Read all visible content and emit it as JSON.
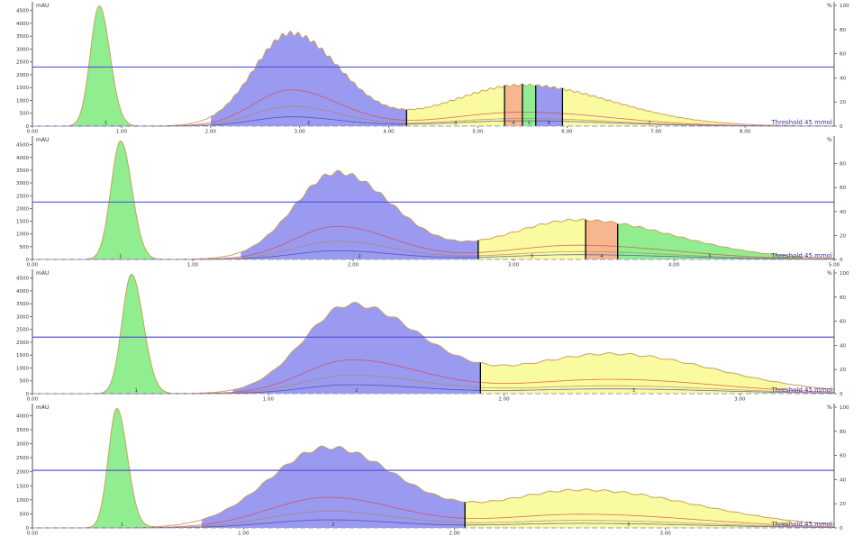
{
  "colors": {
    "axis": "#555555",
    "tick_text": "#333333",
    "threshold_line": "#5555dd",
    "threshold_text": "#3333aa",
    "baseline": "#9999cc",
    "green": "#90ee90",
    "blue": "#9a9af0",
    "yellow": "#fafaa0",
    "orange": "#f6b690",
    "outline": "#c8a060",
    "red_trace": "#dd4444",
    "blue_trace": "#4444aa",
    "brown_trace": "#aa8855",
    "fraction_line": "#000000"
  },
  "chart_data": [
    {
      "type": "area",
      "y_left_label": "mAU",
      "y_right_label": "%",
      "yticks_left": [
        "4500",
        "4000",
        "3500",
        "3000",
        "2500",
        "2000",
        "1500",
        "1000",
        "500",
        "0"
      ],
      "yticks_right": [
        "100",
        "80",
        "60",
        "40",
        "20",
        "0"
      ],
      "ylim_left": [
        0,
        4700
      ],
      "ylim_right": [
        0,
        100
      ],
      "xlim": [
        0,
        9
      ],
      "xticks": [
        "0.00",
        "1.00",
        "2.00",
        "3.00",
        "4.00",
        "5.00",
        "6.00",
        "7.00",
        "8.00"
      ],
      "threshold_value": 2300,
      "threshold_label": "Threshold 45 mmol",
      "peaks": [
        {
          "center": 0.75,
          "height": 4680,
          "width_left": 0.1,
          "width_right": 0.12,
          "red": 0,
          "blue": 0
        },
        {
          "center": 2.9,
          "height": 3600,
          "width_left": 0.42,
          "width_right": 0.55,
          "red": 0.39,
          "blue": 0.1
        },
        {
          "center": 5.5,
          "height": 1600,
          "width_left": 0.8,
          "width_right": 1.0,
          "red": 0.34,
          "blue": 0.13
        }
      ],
      "fractions": [
        {
          "x_start": 0.45,
          "x_end": 1.2,
          "color": "green",
          "label": "1"
        },
        {
          "x_start": 2.0,
          "x_end": 4.2,
          "color": "blue",
          "label": "2"
        },
        {
          "x_start": 4.2,
          "x_end": 5.3,
          "color": "yellow",
          "label": "3"
        },
        {
          "x_start": 5.3,
          "x_end": 5.5,
          "color": "orange",
          "label": "4"
        },
        {
          "x_start": 5.5,
          "x_end": 5.65,
          "color": "green",
          "label": "5"
        },
        {
          "x_start": 5.65,
          "x_end": 5.95,
          "color": "blue",
          "label": "6"
        },
        {
          "x_start": 5.95,
          "x_end": 7.9,
          "color": "yellow",
          "label": "7"
        }
      ],
      "cut_lines": [
        4.2,
        5.3,
        5.5,
        5.65,
        5.95
      ]
    },
    {
      "type": "area",
      "y_left_label": "mAU",
      "y_right_label": "%",
      "yticks_left": [
        "4500",
        "4000",
        "3500",
        "3000",
        "2500",
        "2000",
        "1500",
        "1000",
        "500",
        "0"
      ],
      "yticks_right": [
        "80",
        "60",
        "40",
        "20",
        "0"
      ],
      "ylim_left": [
        0,
        4700
      ],
      "ylim_right": [
        0,
        100
      ],
      "xlim": [
        0,
        5
      ],
      "xticks": [
        "0.00",
        "1.00",
        "2.00",
        "3.00",
        "4.00",
        "5.00"
      ],
      "threshold_value": 2250,
      "threshold_label": "Threshold 45 mmol",
      "peaks": [
        {
          "center": 0.55,
          "height": 4650,
          "width_left": 0.06,
          "width_right": 0.07,
          "red": 0,
          "blue": 0
        },
        {
          "center": 1.9,
          "height": 3400,
          "width_left": 0.27,
          "width_right": 0.35,
          "red": 0.38,
          "blue": 0.1
        },
        {
          "center": 3.4,
          "height": 1550,
          "width_left": 0.45,
          "width_right": 0.6,
          "red": 0.36,
          "blue": 0.12
        }
      ],
      "fractions": [
        {
          "x_start": 0.3,
          "x_end": 0.8,
          "color": "green",
          "label": "1"
        },
        {
          "x_start": 1.3,
          "x_end": 2.78,
          "color": "blue",
          "label": "2"
        },
        {
          "x_start": 2.78,
          "x_end": 3.45,
          "color": "yellow",
          "label": "3"
        },
        {
          "x_start": 3.45,
          "x_end": 3.65,
          "color": "orange",
          "label": "4"
        },
        {
          "x_start": 3.65,
          "x_end": 4.8,
          "color": "green",
          "label": "5"
        }
      ],
      "cut_lines": [
        2.78,
        3.45,
        3.65
      ]
    },
    {
      "type": "area",
      "y_left_label": "mAU",
      "y_right_label": "%",
      "yticks_left": [
        "4500",
        "4000",
        "3500",
        "3000",
        "2500",
        "2000",
        "1500",
        "1000",
        "500",
        "0"
      ],
      "yticks_right": [
        "100",
        "80",
        "60",
        "40",
        "20",
        "0"
      ],
      "ylim_left": [
        0,
        4700
      ],
      "ylim_right": [
        0,
        100
      ],
      "xlim": [
        0,
        3.4
      ],
      "xticks": [
        "0.00",
        "1.00",
        "2.00",
        "3.00"
      ],
      "threshold_value": 2200,
      "threshold_label": "Threshold 45 mmol",
      "peaks": [
        {
          "center": 0.42,
          "height": 4650,
          "width_left": 0.04,
          "width_right": 0.05,
          "red": 0,
          "blue": 0
        },
        {
          "center": 1.35,
          "height": 3450,
          "width_left": 0.2,
          "width_right": 0.3,
          "red": 0.38,
          "blue": 0.1
        },
        {
          "center": 2.45,
          "height": 1550,
          "width_left": 0.38,
          "width_right": 0.45,
          "red": 0.36,
          "blue": 0.12
        }
      ],
      "fractions": [
        {
          "x_start": 0.28,
          "x_end": 0.6,
          "color": "green",
          "label": "1"
        },
        {
          "x_start": 0.85,
          "x_end": 1.9,
          "color": "blue",
          "label": "2"
        },
        {
          "x_start": 1.9,
          "x_end": 3.2,
          "color": "yellow",
          "label": "3"
        }
      ],
      "cut_lines": [
        1.9
      ]
    },
    {
      "type": "area",
      "y_left_label": "mAU",
      "y_right_label": "%",
      "yticks_left": [
        "4000",
        "3500",
        "3000",
        "2500",
        "2000",
        "1500",
        "1000",
        "500",
        "0"
      ],
      "yticks_right": [
        "100",
        "80",
        "60",
        "40",
        "20",
        "0"
      ],
      "ylim_left": [
        0,
        4300
      ],
      "ylim_right": [
        0,
        100
      ],
      "xlim": [
        0,
        3.8
      ],
      "xticks": [
        "0.00",
        "1.00",
        "2.00",
        "3.00"
      ],
      "threshold_value": 2050,
      "threshold_label": "Threshold 45 mmol",
      "peaks": [
        {
          "center": 0.4,
          "height": 4250,
          "width_left": 0.04,
          "width_right": 0.05,
          "red": 0,
          "blue": 0
        },
        {
          "center": 1.4,
          "height": 2850,
          "width_left": 0.28,
          "width_right": 0.33,
          "red": 0.38,
          "blue": 0.1
        },
        {
          "center": 2.6,
          "height": 1350,
          "width_left": 0.4,
          "width_right": 0.55,
          "red": 0.36,
          "blue": 0.12
        }
      ],
      "fractions": [
        {
          "x_start": 0.25,
          "x_end": 0.6,
          "color": "green",
          "label": "1"
        },
        {
          "x_start": 0.8,
          "x_end": 2.05,
          "color": "blue",
          "label": "2"
        },
        {
          "x_start": 2.05,
          "x_end": 3.6,
          "color": "yellow",
          "label": "3"
        }
      ],
      "cut_lines": [
        2.05
      ]
    }
  ]
}
